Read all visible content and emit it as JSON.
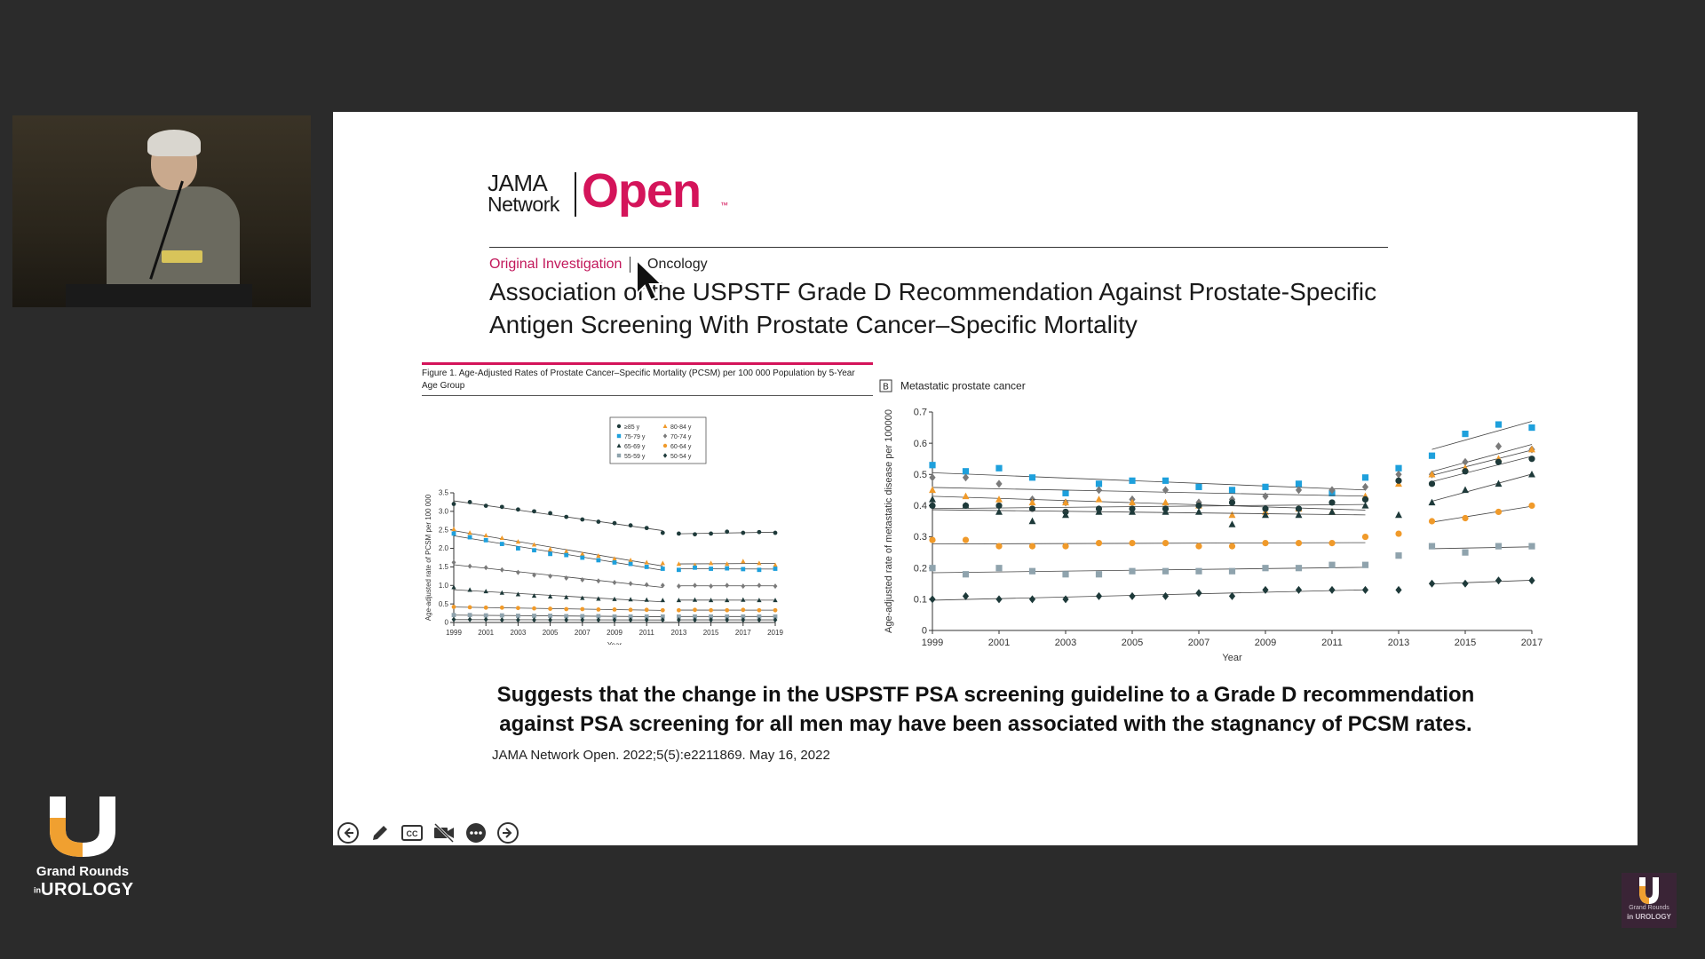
{
  "brand": {
    "line1": "Grand Rounds",
    "line2_prefix": "in",
    "line2": "UROLOGY",
    "watermark_line1": "Grand Rounds",
    "watermark_line2": "in UROLOGY",
    "colors": {
      "gold": "#f0a030",
      "white": "#ffffff"
    }
  },
  "slide": {
    "logo": {
      "jama": "JAMA",
      "network": "Network",
      "open": "Open",
      "tm": "™"
    },
    "article_type": "Original Investigation",
    "article_subject": "Oncology",
    "title": "Association of the USPSTF Grade D Recommendation Against Prostate-Specific Antigen Screening With Prostate Cancer–Specific Mortality",
    "figure_a_caption": "Figure 1. Age-Adjusted Rates of Prostate Cancer–Specific Mortality (PCSM) per 100 000 Population by 5-Year Age Group",
    "summary": "Suggests that the change in the USPSTF PSA screening guideline to a Grade D recommendation against PSA screening for all men may have been associated with the stagnancy of PCSM rates.",
    "citation": "JAMA Network Open. 2022;5(5):e2211869. May 16, 2022",
    "colors": {
      "accent": "#d4145a"
    }
  },
  "controls": [
    {
      "name": "previous-slide-button",
      "icon": "arrow-left-icon"
    },
    {
      "name": "pen-tool-button",
      "icon": "pencil-icon"
    },
    {
      "name": "captions-button",
      "icon": "cc-icon"
    },
    {
      "name": "camera-toggle-button",
      "icon": "video-off-icon"
    },
    {
      "name": "more-options-button",
      "icon": "more-icon"
    },
    {
      "name": "next-slide-button",
      "icon": "arrow-right-icon"
    }
  ],
  "chart_data": [
    {
      "type": "scatter",
      "panel": "A",
      "title": "",
      "xlabel": "Year",
      "ylabel": "Age-adjusted rate of PCSM per 100 000",
      "xlim": [
        1999,
        2019
      ],
      "ylim": [
        0,
        3.5
      ],
      "xticks": [
        "1999",
        "2001",
        "2003",
        "2005",
        "2007",
        "2009",
        "2011",
        "2013",
        "2015",
        "2017",
        "2019"
      ],
      "yticks": [
        "0",
        "0.5",
        "1.0",
        "1.5",
        "2.0",
        "2.5",
        "3.0",
        "3.5"
      ],
      "legend_position": "top-center",
      "x": [
        1999,
        2000,
        2001,
        2002,
        2003,
        2004,
        2005,
        2006,
        2007,
        2008,
        2009,
        2010,
        2011,
        2012,
        2013,
        2014,
        2015,
        2016,
        2017,
        2018,
        2019
      ],
      "series": [
        {
          "name": "≥85 y",
          "marker": "circle",
          "color": "#1e3a3a",
          "values": [
            3.2,
            3.25,
            3.15,
            3.12,
            3.05,
            3.0,
            2.95,
            2.85,
            2.78,
            2.72,
            2.68,
            2.62,
            2.55,
            2.42,
            2.4,
            2.38,
            2.4,
            2.45,
            2.42,
            2.44,
            2.42
          ]
        },
        {
          "name": "80-84 y",
          "marker": "triangle",
          "color": "#f09a2a",
          "values": [
            2.52,
            2.42,
            2.35,
            2.28,
            2.18,
            2.1,
            1.98,
            1.92,
            1.85,
            1.8,
            1.72,
            1.68,
            1.62,
            1.6,
            1.58,
            1.55,
            1.6,
            1.58,
            1.65,
            1.6,
            1.55
          ]
        },
        {
          "name": "75-79 y",
          "marker": "square",
          "color": "#1ea0dc",
          "values": [
            2.4,
            2.3,
            2.22,
            2.12,
            2.0,
            1.95,
            1.85,
            1.82,
            1.75,
            1.68,
            1.62,
            1.58,
            1.5,
            1.45,
            1.42,
            1.48,
            1.45,
            1.46,
            1.44,
            1.42,
            1.45
          ]
        },
        {
          "name": "70-74 y",
          "marker": "diamond",
          "color": "#7a7a7a",
          "values": [
            1.62,
            1.52,
            1.48,
            1.42,
            1.35,
            1.28,
            1.25,
            1.2,
            1.15,
            1.12,
            1.08,
            1.05,
            1.02,
            1.0,
            0.98,
            1.0,
            0.98,
            1.0,
            0.98,
            1.0,
            0.98
          ]
        },
        {
          "name": "65-69 y",
          "marker": "triangle",
          "color": "#1e3a3a",
          "values": [
            0.95,
            0.88,
            0.84,
            0.8,
            0.76,
            0.72,
            0.7,
            0.68,
            0.66,
            0.64,
            0.63,
            0.62,
            0.61,
            0.6,
            0.6,
            0.61,
            0.6,
            0.6,
            0.61,
            0.6,
            0.6
          ]
        },
        {
          "name": "60-64 y",
          "marker": "circle",
          "color": "#f09a2a",
          "values": [
            0.42,
            0.41,
            0.4,
            0.4,
            0.39,
            0.38,
            0.37,
            0.36,
            0.36,
            0.35,
            0.35,
            0.34,
            0.34,
            0.33,
            0.33,
            0.34,
            0.33,
            0.33,
            0.34,
            0.33,
            0.33
          ]
        },
        {
          "name": "55-59 y",
          "marker": "square",
          "color": "#8fa3ad",
          "values": [
            0.2,
            0.2,
            0.19,
            0.19,
            0.18,
            0.18,
            0.18,
            0.17,
            0.17,
            0.17,
            0.16,
            0.16,
            0.16,
            0.16,
            0.16,
            0.16,
            0.16,
            0.16,
            0.16,
            0.16,
            0.16
          ]
        },
        {
          "name": "50-54 y",
          "marker": "diamond",
          "color": "#1e3a3a",
          "values": [
            0.08,
            0.08,
            0.08,
            0.07,
            0.07,
            0.07,
            0.07,
            0.07,
            0.07,
            0.07,
            0.07,
            0.07,
            0.07,
            0.07,
            0.07,
            0.07,
            0.07,
            0.07,
            0.07,
            0.07,
            0.07
          ]
        }
      ]
    },
    {
      "type": "scatter",
      "panel": "B",
      "panel_label": "B",
      "title": "Metastatic prostate cancer",
      "xlabel": "Year",
      "ylabel": "Age-adjusted rate of metastatic disease per 100000",
      "xlim": [
        1999,
        2017
      ],
      "ylim": [
        0,
        0.7
      ],
      "xticks": [
        "1999",
        "2001",
        "2003",
        "2005",
        "2007",
        "2009",
        "2011",
        "2013",
        "2015",
        "2017"
      ],
      "yticks": [
        "0",
        "0.1",
        "0.2",
        "0.3",
        "0.4",
        "0.5",
        "0.6",
        "0.7"
      ],
      "x": [
        1999,
        2000,
        2001,
        2002,
        2003,
        2004,
        2005,
        2006,
        2007,
        2008,
        2009,
        2010,
        2011,
        2012,
        2013,
        2014,
        2015,
        2016,
        2017
      ],
      "series": [
        {
          "marker": "square",
          "color": "#1ea0dc",
          "values": [
            0.53,
            0.51,
            0.52,
            0.49,
            0.44,
            0.47,
            0.48,
            0.48,
            0.46,
            0.45,
            0.46,
            0.47,
            0.44,
            0.49,
            0.52,
            0.56,
            0.63,
            0.66,
            0.65
          ]
        },
        {
          "marker": "diamond",
          "color": "#7a7a7a",
          "values": [
            0.49,
            0.49,
            0.47,
            0.42,
            0.41,
            0.45,
            0.42,
            0.45,
            0.41,
            0.42,
            0.43,
            0.45,
            0.45,
            0.46,
            0.5,
            0.5,
            0.54,
            0.59,
            0.58
          ]
        },
        {
          "marker": "triangle",
          "color": "#f09a2a",
          "values": [
            0.45,
            0.43,
            0.42,
            0.41,
            0.41,
            0.42,
            0.41,
            0.41,
            0.4,
            0.37,
            0.38,
            0.39,
            0.38,
            0.43,
            0.47,
            0.5,
            0.52,
            0.55,
            0.58
          ]
        },
        {
          "marker": "circle",
          "color": "#1e3a3a",
          "values": [
            0.4,
            0.4,
            0.4,
            0.39,
            0.38,
            0.39,
            0.39,
            0.39,
            0.4,
            0.41,
            0.39,
            0.39,
            0.41,
            0.42,
            0.48,
            0.47,
            0.51,
            0.54,
            0.55
          ]
        },
        {
          "marker": "triangle",
          "color": "#1e3a3a",
          "values": [
            0.42,
            0.4,
            0.38,
            0.35,
            0.37,
            0.38,
            0.38,
            0.38,
            0.38,
            0.34,
            0.37,
            0.37,
            0.38,
            0.4,
            0.37,
            0.41,
            0.45,
            0.47,
            0.5
          ]
        },
        {
          "marker": "circle",
          "color": "#f09a2a",
          "values": [
            0.29,
            0.29,
            0.27,
            0.27,
            0.27,
            0.28,
            0.28,
            0.28,
            0.27,
            0.27,
            0.28,
            0.28,
            0.28,
            0.3,
            0.31,
            0.35,
            0.36,
            0.38,
            0.4
          ]
        },
        {
          "marker": "square",
          "color": "#8fa3ad",
          "values": [
            0.2,
            0.18,
            0.2,
            0.19,
            0.18,
            0.18,
            0.19,
            0.19,
            0.19,
            0.19,
            0.2,
            0.2,
            0.21,
            0.21,
            0.24,
            0.27,
            0.25,
            0.27,
            0.27
          ]
        },
        {
          "marker": "diamond",
          "color": "#1e3a3a",
          "values": [
            0.1,
            0.11,
            0.1,
            0.1,
            0.1,
            0.11,
            0.11,
            0.11,
            0.12,
            0.11,
            0.13,
            0.13,
            0.13,
            0.13,
            0.13,
            0.15,
            0.15,
            0.16,
            0.16
          ]
        }
      ]
    }
  ]
}
